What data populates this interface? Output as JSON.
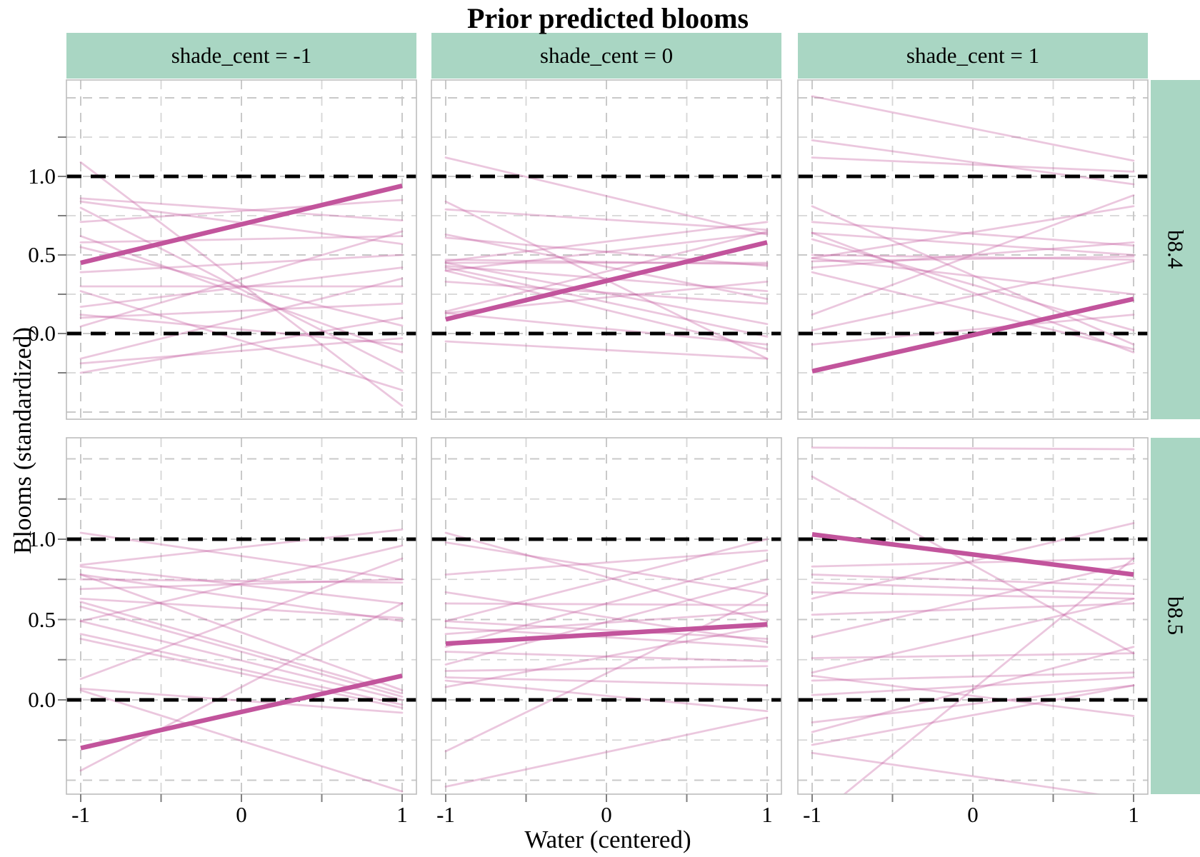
{
  "chart_data": {
    "type": "line",
    "title": "Prior predicted blooms",
    "xlabel": "Water (centered)",
    "ylabel": "Blooms (standardized)",
    "col_facets": [
      "shade_cent = -1",
      "shade_cent = 0",
      "shade_cent = 1"
    ],
    "row_facets": [
      "b8.4",
      "b8.5"
    ],
    "x_ticks": {
      "values": [
        -1,
        0,
        1
      ],
      "labels": [
        "-1",
        "0",
        "1"
      ]
    },
    "y_ticks": {
      "values": [
        1.0,
        0.5,
        0.0
      ],
      "labels": [
        "1.0",
        "0.5",
        "0.0"
      ]
    },
    "x_tick_marks": [
      -1,
      -0.5,
      0,
      0.5,
      1
    ],
    "y_tick_marks": [
      -0.25,
      0,
      0.25,
      0.5,
      0.75,
      1.0,
      1.25
    ],
    "x_major_grid": [
      -1,
      0,
      1
    ],
    "x_minor_grid": [
      -0.5,
      0.5
    ],
    "y_major_grid": [
      -0.5,
      0,
      0.5,
      1,
      1.5
    ],
    "y_minor_grid": [
      -0.25,
      0.25,
      0.75,
      1.25
    ],
    "reference_hlines": [
      0,
      1
    ],
    "x_range": [
      -1.089,
      1.089
    ],
    "grid": "dashed",
    "legend": "none",
    "colors": {
      "strip_bg": "#a9d6c3",
      "mean_line": "#c2549c",
      "draw_line": "rgba(194,84,156,0.33)",
      "grid_major": "#c9c9c9",
      "grid_minor": "#d6d6d6",
      "hline": "#000000",
      "panel_border": "#bdbdbd",
      "tick": "#7f7f7f"
    },
    "panels": [
      {
        "row": "b8.4",
        "col": "shade_cent = -1",
        "mean": [
          0.45,
          0.94
        ],
        "draws": [
          [
            1.09,
            -0.46
          ],
          [
            0.84,
            0.57
          ],
          [
            0.8,
            -0.24
          ],
          [
            0.71,
            0.85
          ],
          [
            0.58,
            0.62
          ],
          [
            0.39,
            0.5
          ],
          [
            0.3,
            0.3
          ],
          [
            0.27,
            -0.36
          ],
          [
            0.17,
            0.42
          ],
          [
            0.12,
            -0.07
          ],
          [
            0.1,
            0.19
          ],
          [
            0.045,
            0.65
          ],
          [
            -0.16,
            0.35
          ],
          [
            -0.19,
            -0.03
          ],
          [
            -0.25,
            0.1
          ],
          [
            0.62,
            -0.12
          ],
          [
            0.86,
            0.72
          ],
          [
            0.55,
            0.05
          ]
        ]
      },
      {
        "row": "b8.4",
        "col": "shade_cent = 0",
        "mean": [
          0.09,
          0.58
        ],
        "draws": [
          [
            1.12,
            0.63
          ],
          [
            0.84,
            -0.16
          ],
          [
            0.79,
            0.66
          ],
          [
            0.63,
            0.22
          ],
          [
            0.61,
            0.43
          ],
          [
            0.46,
            0.71
          ],
          [
            0.45,
            0.45
          ],
          [
            0.43,
            0.27
          ],
          [
            0.42,
            -0.02
          ],
          [
            0.4,
            0.64
          ],
          [
            0.33,
            0.19
          ],
          [
            0.14,
            0.65
          ],
          [
            0.13,
            0.33
          ],
          [
            0.13,
            -0.07
          ],
          [
            -0.05,
            -0.16
          ],
          [
            0.45,
            0.06
          ],
          [
            0.4,
            -0.1
          ],
          [
            0.47,
            0.44
          ]
        ]
      },
      {
        "row": "b8.4",
        "col": "shade_cent = 1",
        "mean": [
          -0.24,
          0.22
        ],
        "draws": [
          [
            1.51,
            1.1
          ],
          [
            1.23,
            0.95
          ],
          [
            1.12,
            1.03
          ],
          [
            0.81,
            -0.07
          ],
          [
            0.71,
            0.56
          ],
          [
            0.64,
            0.5
          ],
          [
            0.64,
            -0.12
          ],
          [
            0.48,
            0.81
          ],
          [
            0.48,
            0.25
          ],
          [
            0.42,
            0.58
          ],
          [
            0.39,
            -0.1
          ],
          [
            0.12,
            0.88
          ],
          [
            0.02,
            0.46
          ],
          [
            -0.07,
            0.12
          ],
          [
            0.46,
            0.49
          ],
          [
            0.6,
            0.02
          ],
          [
            0.5,
            0.47
          ]
        ]
      },
      {
        "row": "b8.5",
        "col": "shade_cent = -1",
        "mean": [
          -0.3,
          0.15
        ],
        "draws": [
          [
            1.04,
            0.75
          ],
          [
            0.84,
            1.06
          ],
          [
            0.83,
            0.6
          ],
          [
            0.78,
            0.49
          ],
          [
            0.78,
            0.06
          ],
          [
            0.69,
            0.75
          ],
          [
            0.63,
            0.51
          ],
          [
            0.61,
            0.04
          ],
          [
            0.58,
            0.02
          ],
          [
            0.49,
            0.96
          ],
          [
            0.49,
            0.0
          ],
          [
            0.41,
            -0.03
          ],
          [
            0.38,
            -0.05
          ],
          [
            0.13,
            0.88
          ],
          [
            0.07,
            -0.08
          ],
          [
            0.06,
            -0.57
          ],
          [
            -0.44,
            0.6
          ],
          [
            0.75,
            0.73
          ]
        ]
      },
      {
        "row": "b8.5",
        "col": "shade_cent = 0",
        "mean": [
          0.35,
          0.47
        ],
        "draws": [
          [
            1.04,
            0.49
          ],
          [
            0.98,
            0.66
          ],
          [
            0.78,
            0.93
          ],
          [
            0.67,
            0.36
          ],
          [
            0.6,
            0.59
          ],
          [
            0.49,
            1.0
          ],
          [
            0.49,
            0.38
          ],
          [
            0.45,
            0.33
          ],
          [
            0.41,
            0.55
          ],
          [
            0.33,
            0.87
          ],
          [
            0.3,
            0.24
          ],
          [
            0.22,
            0.75
          ],
          [
            0.18,
            0.21
          ],
          [
            0.14,
            0.09
          ],
          [
            0.12,
            -0.07
          ],
          [
            0.08,
            0.46
          ],
          [
            -0.32,
            0.65
          ],
          [
            -0.54,
            -0.11
          ]
        ]
      },
      {
        "row": "b8.5",
        "col": "shade_cent = 1",
        "mean": [
          1.03,
          0.78
        ],
        "draws": [
          [
            1.57,
            1.56
          ],
          [
            1.39,
            0.29
          ],
          [
            0.83,
            0.88
          ],
          [
            0.78,
            0.71
          ],
          [
            0.73,
            0.66
          ],
          [
            0.67,
            0.63
          ],
          [
            0.63,
            1.1
          ],
          [
            0.53,
            0.6
          ],
          [
            0.39,
            0.85
          ],
          [
            0.26,
            0.29
          ],
          [
            0.17,
            0.63
          ],
          [
            0.15,
            -0.1
          ],
          [
            0.12,
            0.17
          ],
          [
            0.03,
            0.14
          ],
          [
            -0.14,
            0.09
          ],
          [
            -0.2,
            0.33
          ],
          [
            -0.28,
            0.09
          ],
          [
            -0.33,
            -0.62
          ],
          [
            -0.75,
            0.88
          ]
        ]
      }
    ]
  }
}
